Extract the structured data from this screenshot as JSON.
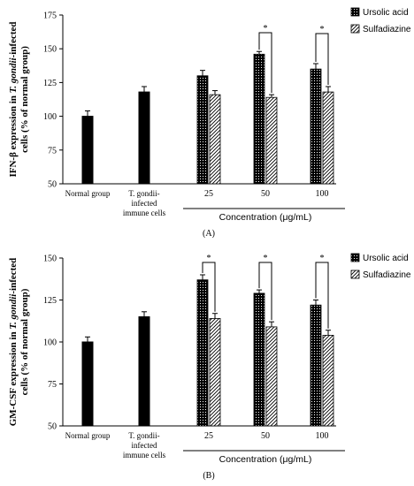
{
  "colors": {
    "ursolic": "#000000",
    "sulfadiazine": "#ffffff",
    "axis": "#000000"
  },
  "chart_data": [
    {
      "type": "bar",
      "panel_label": "(A)",
      "ylabel": "IFN-β expression in T. gondii-infected cells (% of normal group)",
      "ylabel_parts": {
        "line1_prefix": "IFN-β expression in ",
        "line1_italic": "T. gondii",
        "line1_suffix": "-infected",
        "line2": "cells (% of normal group)"
      },
      "ylim": [
        50,
        175
      ],
      "yticks": [
        "50",
        "75",
        "100",
        "125",
        "150",
        "175"
      ],
      "categories": [
        "Normal group",
        "T. gondii-infected immune cells",
        "25",
        "50",
        "100"
      ],
      "category_lines": [
        [
          "Normal group"
        ],
        [
          "T. gondii-",
          "infected",
          "immune cells"
        ],
        [
          "25"
        ],
        [
          "50"
        ],
        [
          "100"
        ]
      ],
      "xlabel": "Concentration (μg/mL)",
      "legend": [
        "Ursolic acid",
        "Sulfadiazine"
      ],
      "significance": [
        "*",
        "*"
      ],
      "controls": [
        {
          "category": "Normal group",
          "value": 100,
          "error": 4
        },
        {
          "category": "T. gondii-infected immune cells",
          "value": 118,
          "error": 4
        }
      ],
      "series": [
        {
          "name": "Ursolic acid",
          "values": [
            null,
            null,
            130,
            146,
            135
          ],
          "errors": [
            null,
            null,
            4,
            2,
            4
          ]
        },
        {
          "name": "Sulfadiazine",
          "values": [
            null,
            null,
            116,
            114,
            118
          ],
          "errors": [
            null,
            null,
            3,
            2,
            4
          ]
        }
      ]
    },
    {
      "type": "bar",
      "panel_label": "(B)",
      "ylabel": "GM-CSF expression in T. gondii-infected cells (% of normal group)",
      "ylabel_parts": {
        "line1_prefix": "GM-CSF expression in ",
        "line1_italic": "T. gondii",
        "line1_suffix": "-infected",
        "line2": "cells (% of normal group)"
      },
      "ylim": [
        50,
        150
      ],
      "yticks": [
        "50",
        "75",
        "100",
        "125",
        "150"
      ],
      "categories": [
        "Normal group",
        "T. gondii-infected immune cells",
        "25",
        "50",
        "100"
      ],
      "category_lines": [
        [
          "Normal group"
        ],
        [
          "T. gondii-",
          "infected",
          "immune cells"
        ],
        [
          "25"
        ],
        [
          "50"
        ],
        [
          "100"
        ]
      ],
      "xlabel": "Concentration (μg/mL)",
      "legend": [
        "Ursolic acid",
        "Sulfadiazine"
      ],
      "significance": [
        "*",
        "*",
        "*"
      ],
      "controls": [
        {
          "category": "Normal group",
          "value": 100,
          "error": 3
        },
        {
          "category": "T. gondii-infected immune cells",
          "value": 115,
          "error": 3
        }
      ],
      "series": [
        {
          "name": "Ursolic acid",
          "values": [
            null,
            null,
            137,
            129,
            122
          ],
          "errors": [
            null,
            null,
            3,
            2,
            3
          ]
        },
        {
          "name": "Sulfadiazine",
          "values": [
            null,
            null,
            114,
            109,
            104
          ],
          "errors": [
            null,
            null,
            3,
            3,
            3
          ]
        }
      ]
    }
  ]
}
